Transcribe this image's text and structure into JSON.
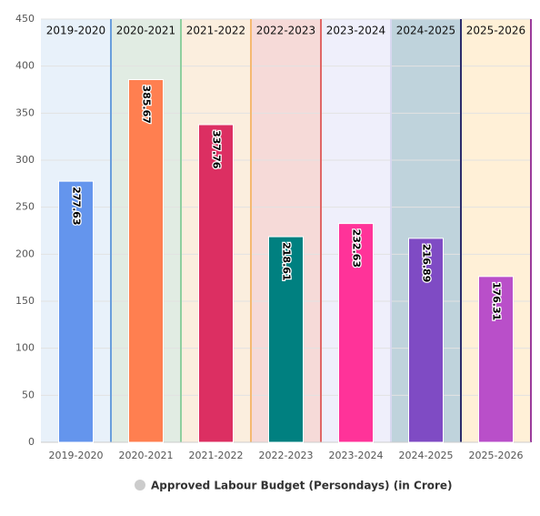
{
  "chart_data": {
    "type": "bar",
    "categories": [
      "2019-2020",
      "2020-2021",
      "2021-2022",
      "2022-2023",
      "2023-2024",
      "2024-2025",
      "2025-2026"
    ],
    "series": [
      {
        "name": "Approved Labour Budget (Persondays) (in Crore)",
        "color": "#cccccc",
        "colors": [
          "#6495ed",
          "#ff7f50",
          "#dc2f62",
          "#008080",
          "#ff3399",
          "#7f4bc4",
          "#b94fc9"
        ],
        "values": [
          277.63,
          385.67,
          337.76,
          218.61,
          232.63,
          216.89,
          176.31
        ]
      }
    ],
    "band_colors": [
      "#e8f1fa",
      "#e1ece3",
      "#fbeede",
      "#f6dad8",
      "#efeffb",
      "#bfd3dc",
      "#fff0d7"
    ],
    "band_line_colors": [
      "#6a9fdc",
      "#8fcf9f",
      "#f5b971",
      "#e06666",
      "#d8d8f0",
      "#2c2c6c",
      "#9b3b9b"
    ],
    "ylim": [
      0,
      450
    ],
    "yticks": [
      0,
      50,
      100,
      150,
      200,
      250,
      300,
      350,
      400,
      450
    ],
    "grid": true
  }
}
